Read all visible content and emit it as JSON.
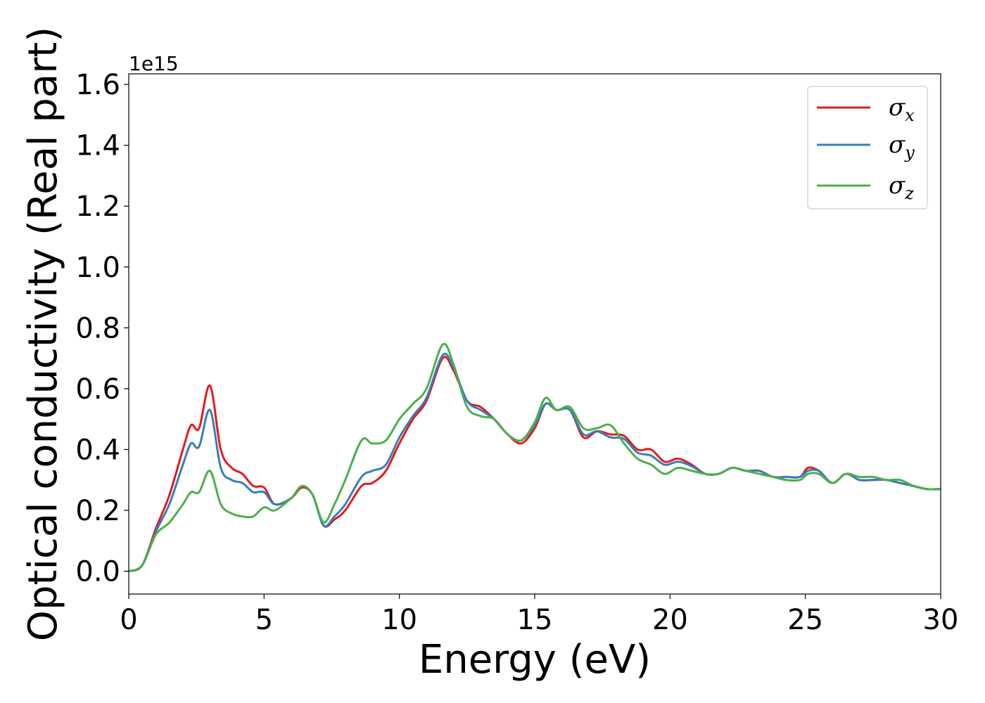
{
  "chart_data": {
    "type": "line",
    "xlabel": "Energy (eV)",
    "ylabel": "Optical conductivity (Real part)",
    "y_offset_text": "1e15",
    "xlim": [
      0,
      30
    ],
    "ylim": [
      -0.075,
      1.635
    ],
    "x_ticks": [
      0,
      5,
      10,
      15,
      20,
      25,
      30
    ],
    "x_tick_labels": [
      "0",
      "5",
      "10",
      "15",
      "20",
      "25",
      "30"
    ],
    "y_ticks": [
      0.0,
      0.2,
      0.4,
      0.6,
      0.8,
      1.0,
      1.2,
      1.4,
      1.6
    ],
    "y_tick_labels": [
      "0.0",
      "0.2",
      "0.4",
      "0.6",
      "0.8",
      "1.0",
      "1.2",
      "1.4",
      "1.6"
    ],
    "grid": false,
    "legend_position": "top-right",
    "series": [
      {
        "name": "σx",
        "name_base": "σ",
        "name_sub": "x",
        "color": "#e41a1c",
        "x": [
          0,
          0.5,
          1.0,
          1.5,
          2.0,
          2.3,
          2.6,
          3.0,
          3.4,
          3.8,
          4.2,
          4.6,
          5.0,
          5.4,
          6.0,
          6.4,
          6.8,
          7.2,
          7.6,
          8.0,
          8.6,
          9.0,
          9.5,
          10.0,
          10.5,
          11.0,
          11.6,
          12.0,
          12.5,
          13.0,
          13.5,
          14.0,
          14.5,
          15.0,
          15.4,
          15.8,
          16.3,
          16.8,
          17.3,
          17.8,
          18.3,
          18.8,
          19.3,
          19.8,
          20.3,
          20.8,
          21.3,
          21.8,
          22.3,
          22.8,
          23.3,
          23.8,
          24.3,
          24.8,
          25.1,
          25.5,
          26.0,
          26.5,
          27.0,
          27.5,
          28.0,
          28.5,
          29.0,
          29.5,
          30.0
        ],
        "y": [
          0.0,
          0.02,
          0.14,
          0.25,
          0.4,
          0.48,
          0.47,
          0.61,
          0.4,
          0.34,
          0.32,
          0.28,
          0.275,
          0.22,
          0.24,
          0.275,
          0.25,
          0.15,
          0.17,
          0.2,
          0.28,
          0.29,
          0.33,
          0.42,
          0.5,
          0.56,
          0.7,
          0.66,
          0.56,
          0.54,
          0.5,
          0.45,
          0.42,
          0.47,
          0.55,
          0.53,
          0.53,
          0.44,
          0.46,
          0.45,
          0.445,
          0.4,
          0.4,
          0.36,
          0.37,
          0.35,
          0.32,
          0.32,
          0.34,
          0.33,
          0.33,
          0.31,
          0.31,
          0.31,
          0.34,
          0.33,
          0.29,
          0.32,
          0.3,
          0.3,
          0.3,
          0.29,
          0.28,
          0.27,
          0.27
        ]
      },
      {
        "name": "σy",
        "name_base": "σ",
        "name_sub": "y",
        "color": "#377eb8",
        "x": [
          0,
          0.5,
          1.0,
          1.5,
          2.0,
          2.3,
          2.6,
          3.0,
          3.4,
          3.8,
          4.2,
          4.6,
          5.0,
          5.4,
          6.0,
          6.4,
          6.8,
          7.2,
          7.6,
          8.0,
          8.6,
          9.0,
          9.5,
          10.0,
          10.5,
          11.0,
          11.6,
          12.0,
          12.5,
          13.0,
          13.5,
          14.0,
          14.5,
          15.0,
          15.4,
          15.8,
          16.3,
          16.8,
          17.3,
          17.8,
          18.3,
          18.8,
          19.3,
          19.8,
          20.3,
          20.8,
          21.3,
          21.8,
          22.3,
          22.8,
          23.3,
          23.8,
          24.3,
          24.8,
          25.1,
          25.5,
          26.0,
          26.5,
          27.0,
          27.5,
          28.0,
          28.5,
          29.0,
          29.5,
          30.0
        ],
        "y": [
          0.0,
          0.02,
          0.13,
          0.22,
          0.35,
          0.42,
          0.41,
          0.53,
          0.34,
          0.3,
          0.29,
          0.26,
          0.26,
          0.22,
          0.24,
          0.28,
          0.25,
          0.15,
          0.18,
          0.22,
          0.31,
          0.33,
          0.35,
          0.44,
          0.51,
          0.57,
          0.71,
          0.67,
          0.56,
          0.53,
          0.5,
          0.45,
          0.43,
          0.48,
          0.55,
          0.53,
          0.53,
          0.45,
          0.46,
          0.44,
          0.435,
          0.39,
          0.38,
          0.35,
          0.36,
          0.345,
          0.32,
          0.32,
          0.34,
          0.33,
          0.33,
          0.31,
          0.31,
          0.31,
          0.33,
          0.33,
          0.29,
          0.32,
          0.3,
          0.3,
          0.3,
          0.29,
          0.28,
          0.27,
          0.27
        ]
      },
      {
        "name": "σz",
        "name_base": "σ",
        "name_sub": "z",
        "color": "#4daf4a",
        "x": [
          0,
          0.5,
          1.0,
          1.5,
          2.0,
          2.3,
          2.6,
          3.0,
          3.4,
          3.8,
          4.2,
          4.6,
          5.0,
          5.4,
          6.0,
          6.4,
          6.8,
          7.2,
          7.6,
          8.0,
          8.6,
          9.0,
          9.5,
          10.0,
          10.5,
          11.0,
          11.6,
          12.0,
          12.5,
          13.0,
          13.5,
          14.0,
          14.5,
          15.0,
          15.4,
          15.8,
          16.3,
          16.8,
          17.3,
          17.8,
          18.3,
          18.8,
          19.3,
          19.8,
          20.3,
          20.8,
          21.3,
          21.8,
          22.3,
          22.8,
          23.3,
          23.8,
          24.3,
          24.8,
          25.1,
          25.5,
          26.0,
          26.5,
          27.0,
          27.5,
          28.0,
          28.5,
          29.0,
          29.5,
          30.0
        ],
        "y": [
          0.0,
          0.02,
          0.12,
          0.16,
          0.22,
          0.26,
          0.26,
          0.33,
          0.22,
          0.19,
          0.18,
          0.18,
          0.21,
          0.2,
          0.24,
          0.28,
          0.25,
          0.16,
          0.22,
          0.3,
          0.43,
          0.42,
          0.43,
          0.5,
          0.55,
          0.6,
          0.745,
          0.68,
          0.54,
          0.51,
          0.5,
          0.45,
          0.43,
          0.49,
          0.57,
          0.53,
          0.54,
          0.47,
          0.47,
          0.48,
          0.42,
          0.37,
          0.35,
          0.32,
          0.34,
          0.33,
          0.32,
          0.32,
          0.34,
          0.33,
          0.32,
          0.31,
          0.3,
          0.3,
          0.32,
          0.32,
          0.29,
          0.32,
          0.31,
          0.31,
          0.3,
          0.3,
          0.28,
          0.27,
          0.27
        ]
      }
    ]
  }
}
